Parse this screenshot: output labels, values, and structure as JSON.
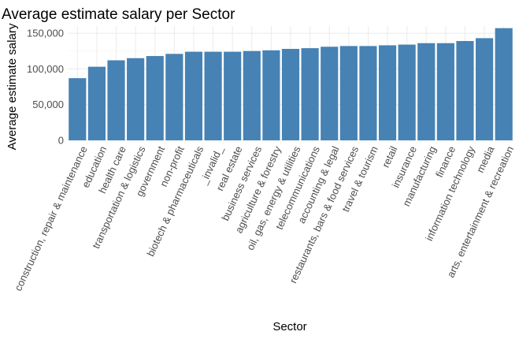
{
  "chart_data": {
    "type": "bar",
    "title": "Average estimate salary per Sector",
    "xlabel": "Sector",
    "ylabel": "Average estimate salary",
    "ylim": [
      0,
      160000
    ],
    "yticks": [
      0,
      50000,
      100000,
      150000
    ],
    "ytick_labels": [
      "0",
      "50,000",
      "100,000",
      "150,000"
    ],
    "grid": true,
    "bar_color": "#4682b4",
    "categories": [
      "construction, repair & maintenance",
      "education",
      "health care",
      "transportation & logistics",
      "government",
      "non-profit",
      "biotech & pharmaceuticals",
      "_invalid_",
      "real estate",
      "business services",
      "agriculture & forestry",
      "oil, gas, energy & utilities",
      "telecommunications",
      "accounting & legal",
      "restaurants, bars & food services",
      "travel & tourism",
      "retail",
      "insurance",
      "manufacturing",
      "finance",
      "information technology",
      "media",
      "arts, entertainment & recreation"
    ],
    "values": [
      87000,
      103000,
      112000,
      115000,
      118000,
      121000,
      124000,
      124000,
      124000,
      125000,
      126000,
      128000,
      129000,
      131000,
      132000,
      132000,
      133000,
      134000,
      136000,
      136000,
      139000,
      143000,
      157000
    ]
  }
}
